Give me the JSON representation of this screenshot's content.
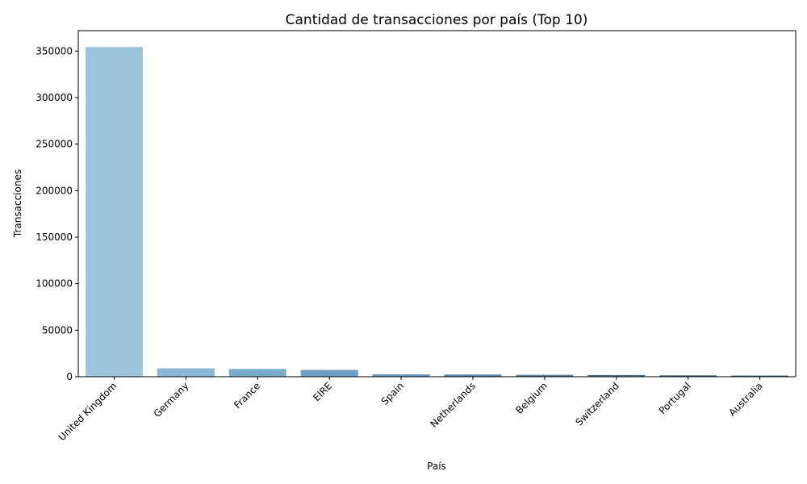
{
  "chart_data": {
    "type": "bar",
    "title": "Cantidad de transacciones por país (Top 10)",
    "xlabel": "País",
    "ylabel": "Transacciones",
    "categories": [
      "United Kingdom",
      "Germany",
      "France",
      "EIRE",
      "Spain",
      "Netherlands",
      "Belgium",
      "Switzerland",
      "Portugal",
      "Australia"
    ],
    "values": [
      354345,
      9042,
      8342,
      7238,
      2485,
      2363,
      2031,
      1842,
      1462,
      1185
    ],
    "ylim": [
      0,
      372000
    ],
    "yticks": [
      0,
      50000,
      100000,
      150000,
      200000,
      250000,
      300000,
      350000
    ],
    "ytick_labels": [
      "0",
      "50000",
      "100000",
      "150000",
      "200000",
      "250000",
      "300000",
      "350000"
    ],
    "colors": [
      "#9ec4db",
      "#8bb8d6",
      "#7aaccf",
      "#6d9fc6",
      "#6495bc",
      "#5a89b1",
      "#537ea4",
      "#4d7394",
      "#456683",
      "#3a586f"
    ],
    "grid": false,
    "legend": "none"
  }
}
